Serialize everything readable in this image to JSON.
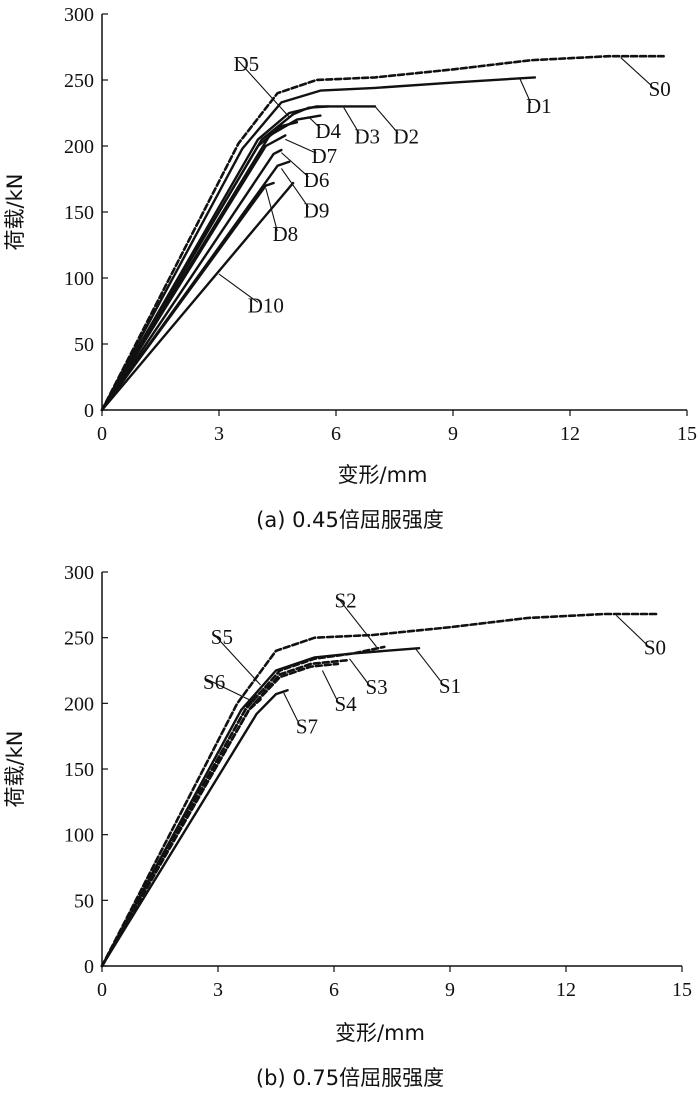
{
  "chart_data": [
    {
      "type": "line",
      "caption": "(a) 0.45倍屈服强度",
      "xlabel": "变形/mm",
      "ylabel": "荷载/kN",
      "xlim": [
        0,
        15
      ],
      "ylim": [
        0,
        300
      ],
      "xticks": [
        "0",
        "3",
        "6",
        "9",
        "12",
        "15"
      ],
      "yticks": [
        "0",
        "50",
        "100",
        "150",
        "200",
        "250",
        "300"
      ],
      "series": [
        {
          "name": "S0",
          "style": "dashed",
          "points": [
            [
              0,
              0
            ],
            [
              3.5,
              202
            ],
            [
              4.5,
              240
            ],
            [
              5.5,
              250
            ],
            [
              7,
              252
            ],
            [
              9,
              258
            ],
            [
              11,
              265
            ],
            [
              13,
              268
            ],
            [
              14.4,
              268
            ]
          ],
          "label_at": [
            13.3,
            267
          ],
          "label_pos": [
            14.3,
            238
          ]
        },
        {
          "name": "D1",
          "style": "solid",
          "points": [
            [
              0,
              0
            ],
            [
              3.6,
              198
            ],
            [
              4.6,
              233
            ],
            [
              5.6,
              242
            ],
            [
              7,
              244
            ],
            [
              9,
              248
            ],
            [
              11.1,
              252
            ]
          ],
          "label_at": [
            10.7,
            252
          ],
          "label_pos": [
            11.2,
            225
          ]
        },
        {
          "name": "D2",
          "style": "solid",
          "points": [
            [
              0,
              0
            ],
            [
              4,
              205
            ],
            [
              4.8,
              225
            ],
            [
              5.5,
              230
            ],
            [
              7,
              230
            ]
          ],
          "label_at": [
            7.0,
            230
          ],
          "label_pos": [
            7.8,
            202
          ]
        },
        {
          "name": "D3",
          "style": "solid",
          "points": [
            [
              0,
              0
            ],
            [
              4.1,
              205
            ],
            [
              4.9,
              224
            ],
            [
              5.3,
              229
            ],
            [
              5.8,
              230
            ]
          ],
          "label_at": [
            6.2,
            229
          ],
          "label_pos": [
            6.8,
            202
          ]
        },
        {
          "name": "D4",
          "style": "solid",
          "points": [
            [
              0,
              0
            ],
            [
              4.3,
              208
            ],
            [
              5,
              220
            ],
            [
              5.6,
              223
            ]
          ],
          "label_at": [
            5.3,
            222
          ],
          "label_pos": [
            5.8,
            206
          ]
        },
        {
          "name": "D5",
          "style": "solid",
          "points": [
            [
              0,
              0
            ],
            [
              4,
              200
            ],
            [
              4.6,
              215
            ],
            [
              5,
              218
            ]
          ],
          "label_at": [
            4.8,
            222
          ],
          "label_pos": [
            3.7,
            257
          ]
        },
        {
          "name": "D7",
          "style": "solid",
          "points": [
            [
              0,
              0
            ],
            [
              4.2,
              200
            ],
            [
              4.7,
              208
            ]
          ],
          "label_at": [
            4.7,
            205
          ],
          "label_pos": [
            5.7,
            187
          ]
        },
        {
          "name": "D6",
          "style": "solid",
          "points": [
            [
              0,
              0
            ],
            [
              4.4,
              194
            ],
            [
              4.6,
              197
            ]
          ],
          "label_at": [
            4.6,
            195
          ],
          "label_pos": [
            5.5,
            169
          ]
        },
        {
          "name": "D9",
          "style": "solid",
          "points": [
            [
              0,
              0
            ],
            [
              4.5,
              185
            ],
            [
              4.8,
              188
            ]
          ],
          "label_at": [
            4.6,
            183
          ],
          "label_pos": [
            5.5,
            146
          ]
        },
        {
          "name": "D8",
          "style": "solid",
          "points": [
            [
              0,
              0
            ],
            [
              4.2,
              170
            ],
            [
              4.4,
              172
            ]
          ],
          "label_at": [
            4.2,
            168
          ],
          "label_pos": [
            4.7,
            128
          ]
        },
        {
          "name": "D10",
          "style": "solid",
          "points": [
            [
              0,
              0
            ],
            [
              4.9,
              172
            ]
          ],
          "label_at": [
            3,
            103
          ],
          "label_pos": [
            4.2,
            74
          ]
        }
      ]
    },
    {
      "type": "line",
      "caption": "(b) 0.75倍屈服强度",
      "xlabel": "变形/mm",
      "ylabel": "荷载/kN",
      "xlim": [
        0,
        15
      ],
      "ylim": [
        0,
        300
      ],
      "xticks": [
        "0",
        "3",
        "6",
        "9",
        "12",
        "15"
      ],
      "yticks": [
        "0",
        "50",
        "100",
        "150",
        "200",
        "250",
        "300"
      ],
      "series": [
        {
          "name": "S0",
          "style": "dashed",
          "points": [
            [
              0,
              0
            ],
            [
              3.5,
              200
            ],
            [
              4.5,
              240
            ],
            [
              5.5,
              250
            ],
            [
              7,
              252
            ],
            [
              9,
              258
            ],
            [
              11,
              265
            ],
            [
              13,
              268
            ],
            [
              14.4,
              268
            ]
          ],
          "label_at": [
            13.3,
            267
          ],
          "label_pos": [
            14.3,
            237
          ]
        },
        {
          "name": "S1",
          "style": "solid",
          "points": [
            [
              0,
              0
            ],
            [
              3.6,
              195
            ],
            [
              4.5,
              225
            ],
            [
              5.5,
              235
            ],
            [
              6.5,
              238
            ],
            [
              8.2,
              242
            ]
          ],
          "label_at": [
            8.1,
            242
          ],
          "label_pos": [
            9.0,
            208
          ]
        },
        {
          "name": "S2",
          "style": "dashed",
          "points": [
            [
              0,
              0
            ],
            [
              3.7,
              195
            ],
            [
              4.6,
              225
            ],
            [
              5.5,
              234
            ],
            [
              6.5,
              238
            ],
            [
              7.3,
              243
            ]
          ],
          "label_at": [
            7.1,
            243
          ],
          "label_pos": [
            6.3,
            273
          ]
        },
        {
          "name": "S3",
          "style": "dashed",
          "points": [
            [
              0,
              0
            ],
            [
              3.8,
              195
            ],
            [
              4.6,
              222
            ],
            [
              5.4,
              230
            ],
            [
              6.4,
              233
            ]
          ],
          "label_at": [
            6.4,
            234
          ],
          "label_pos": [
            7.1,
            207
          ]
        },
        {
          "name": "S4",
          "style": "dashed",
          "points": [
            [
              0,
              0
            ],
            [
              3.8,
              195
            ],
            [
              4.6,
              220
            ],
            [
              5.4,
              228
            ],
            [
              6.1,
              230
            ]
          ],
          "label_at": [
            5.7,
            225
          ],
          "label_pos": [
            6.3,
            194
          ]
        },
        {
          "name": "S5",
          "style": "dashed",
          "points": [
            [
              0,
              0
            ],
            [
              3.8,
              200
            ],
            [
              4.3,
              214
            ]
          ],
          "label_at": [
            4.1,
            214
          ],
          "label_pos": [
            3.1,
            245
          ]
        },
        {
          "name": "S6",
          "style": "dashed",
          "points": [
            [
              0,
              0
            ],
            [
              3.8,
              195
            ],
            [
              4.1,
              203
            ]
          ],
          "label_at": [
            4.0,
            200
          ],
          "label_pos": [
            2.9,
            211
          ]
        },
        {
          "name": "S7",
          "style": "solid",
          "points": [
            [
              0,
              0
            ],
            [
              4,
              192
            ],
            [
              4.5,
              207
            ],
            [
              4.8,
              210
            ]
          ],
          "label_at": [
            4.7,
            208
          ],
          "label_pos": [
            5.3,
            177
          ]
        }
      ]
    }
  ]
}
